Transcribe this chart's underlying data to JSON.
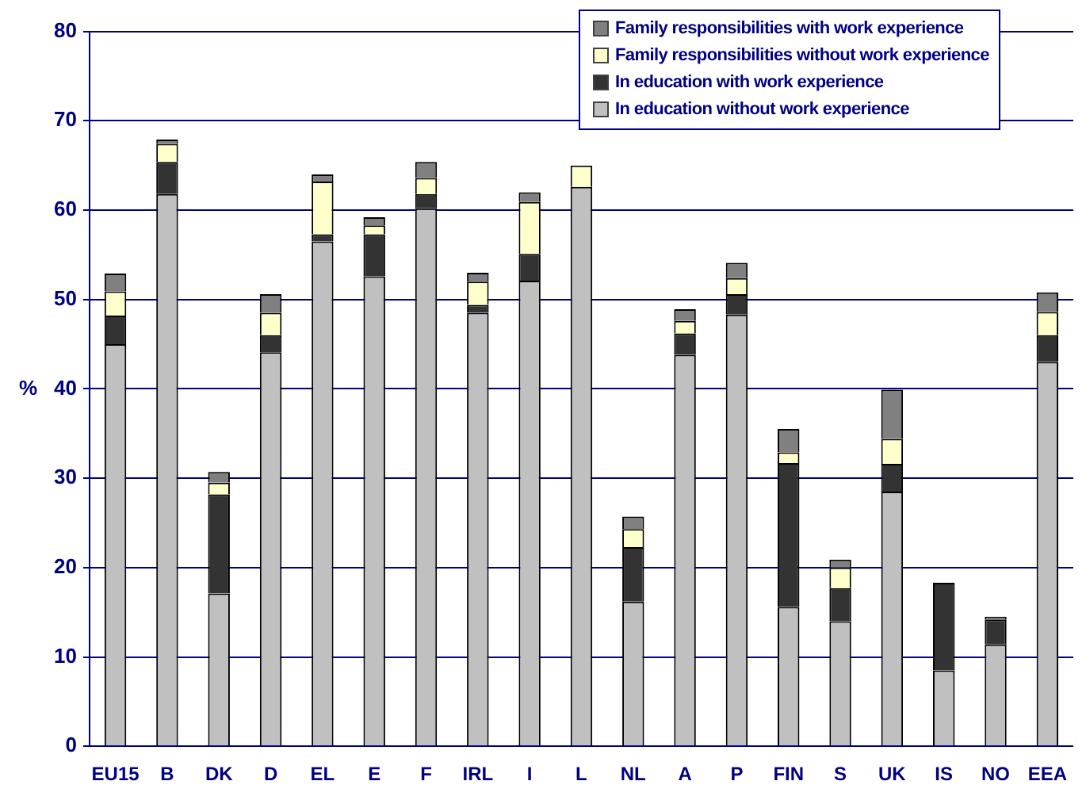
{
  "chart_data": {
    "type": "bar",
    "stacked": true,
    "ylabel": "%",
    "categories": [
      "EU15",
      "B",
      "DK",
      "D",
      "EL",
      "E",
      "F",
      "IRL",
      "I",
      "L",
      "NL",
      "A",
      "P",
      "FIN",
      "S",
      "UK",
      "IS",
      "NO",
      "EEA"
    ],
    "series": [
      {
        "name": "In education without work experience",
        "color": "#c0c0c0",
        "values": [
          45,
          61.8,
          17.1,
          44.1,
          56.5,
          52.6,
          60.2,
          48.5,
          52.1,
          62.6,
          16.2,
          43.8,
          48.3,
          15.6,
          14.0,
          28.5,
          8.5,
          11.4,
          43.0
        ]
      },
      {
        "name": "In education with work experience",
        "color": "#333333",
        "values": [
          3.2,
          3.6,
          11.1,
          1.9,
          0.8,
          4.7,
          1.6,
          0.9,
          3.0,
          0,
          6.1,
          2.4,
          2.3,
          16.1,
          3.7,
          3.1,
          9.8,
          2.8,
          3.0
        ]
      },
      {
        "name": "Family responsibilities without work experience",
        "color": "#ffffcc",
        "values": [
          2.7,
          2.0,
          1.3,
          2.5,
          5.9,
          1.0,
          1.8,
          2.6,
          5.8,
          2.4,
          2.0,
          1.4,
          1.8,
          1.2,
          2.3,
          2.8,
          0,
          0,
          2.6
        ]
      },
      {
        "name": "Family responsibilities with work experience",
        "color": "#808080",
        "values": [
          2.0,
          0.5,
          1.2,
          2.1,
          0.8,
          0.9,
          1.8,
          1.0,
          1.1,
          0,
          1.4,
          1.3,
          1.7,
          2.6,
          0.9,
          5.5,
          0,
          0.3,
          2.2
        ]
      }
    ],
    "ylim": [
      0,
      80
    ],
    "yticks": [
      0,
      10,
      20,
      30,
      40,
      50,
      60,
      70,
      80
    ],
    "grid": "y",
    "legend": "top right"
  }
}
